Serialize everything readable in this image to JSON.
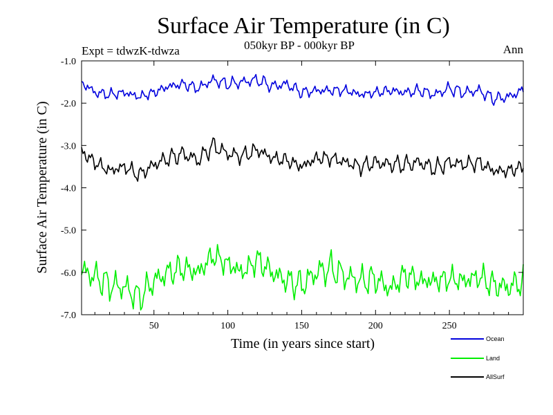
{
  "chart_data": {
    "type": "line",
    "title": "Surface Air Temperature (in C)",
    "subtitle": "050kyr BP - 000kyr BP",
    "experiment": "Expt = tdwzK-tdwza",
    "season": "Ann",
    "xlabel": "Time (in years since start)",
    "ylabel": "Surface Air Temperature (in C)",
    "xlim": [
      1,
      300
    ],
    "ylim": [
      -7.0,
      -1.0
    ],
    "x_ticks": [
      50,
      100,
      150,
      200,
      250
    ],
    "y_ticks": [
      -1.0,
      -2.0,
      -3.0,
      -4.0,
      -5.0,
      -6.0,
      -7.0
    ],
    "x_tick_labels": [
      "50",
      "100",
      "150",
      "200",
      "250"
    ],
    "y_tick_labels": [
      "-1.0",
      "-2.0",
      "-3.0",
      "-4.0",
      "-5.0",
      "-6.0",
      "-7.0"
    ],
    "legend_position": "bottom-right",
    "series": [
      {
        "name": "Ocean",
        "color": "#0000dd",
        "x": [
          1,
          10,
          20,
          30,
          40,
          50,
          60,
          70,
          80,
          90,
          100,
          110,
          120,
          130,
          140,
          150,
          160,
          170,
          180,
          190,
          200,
          210,
          220,
          230,
          240,
          250,
          260,
          270,
          280,
          290,
          300
        ],
        "values": [
          -1.5,
          -1.75,
          -1.8,
          -1.75,
          -1.85,
          -1.75,
          -1.6,
          -1.55,
          -1.65,
          -1.45,
          -1.55,
          -1.5,
          -1.45,
          -1.6,
          -1.55,
          -1.75,
          -1.7,
          -1.7,
          -1.7,
          -1.8,
          -1.75,
          -1.7,
          -1.75,
          -1.7,
          -1.8,
          -1.65,
          -1.75,
          -1.7,
          -1.9,
          -1.85,
          -1.7
        ]
      },
      {
        "name": "Land",
        "color": "#00ee00",
        "x": [
          1,
          10,
          20,
          30,
          40,
          50,
          60,
          70,
          80,
          90,
          100,
          110,
          120,
          130,
          140,
          150,
          160,
          170,
          180,
          190,
          200,
          210,
          220,
          230,
          240,
          250,
          260,
          270,
          280,
          290,
          300
        ],
        "values": [
          -5.95,
          -6.1,
          -6.3,
          -6.35,
          -6.6,
          -6.2,
          -6.0,
          -5.9,
          -6.0,
          -5.6,
          -5.8,
          -6.0,
          -5.7,
          -6.0,
          -6.2,
          -6.3,
          -6.0,
          -5.9,
          -6.1,
          -6.2,
          -6.15,
          -6.4,
          -6.05,
          -6.2,
          -6.2,
          -6.15,
          -6.2,
          -6.1,
          -6.3,
          -6.35,
          -6.2
        ]
      },
      {
        "name": "AllSurf",
        "color": "#000000",
        "x": [
          1,
          10,
          20,
          30,
          40,
          50,
          60,
          70,
          80,
          90,
          100,
          110,
          120,
          130,
          140,
          150,
          160,
          170,
          180,
          190,
          200,
          210,
          220,
          230,
          240,
          250,
          260,
          270,
          280,
          290,
          300
        ],
        "values": [
          -3.15,
          -3.4,
          -3.6,
          -3.5,
          -3.7,
          -3.45,
          -3.3,
          -3.2,
          -3.35,
          -3.0,
          -3.2,
          -3.25,
          -3.1,
          -3.3,
          -3.35,
          -3.5,
          -3.3,
          -3.3,
          -3.4,
          -3.5,
          -3.4,
          -3.45,
          -3.45,
          -3.4,
          -3.55,
          -3.4,
          -3.45,
          -3.4,
          -3.6,
          -3.6,
          -3.5
        ]
      }
    ]
  }
}
